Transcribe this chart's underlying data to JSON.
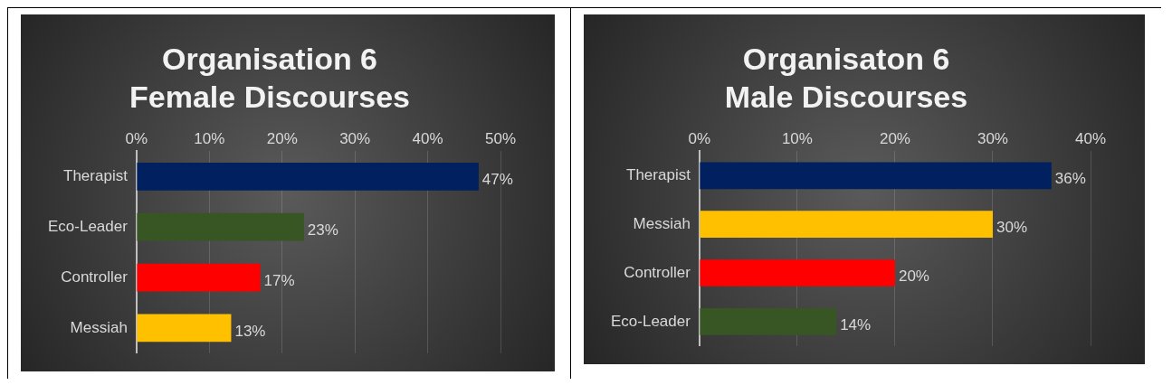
{
  "chart_data": [
    {
      "type": "bar",
      "orientation": "horizontal",
      "title": "Organisation 6\nFemale Discourses",
      "categories": [
        "Therapist",
        "Eco-Leader",
        "Controller",
        "Messiah"
      ],
      "values": [
        47,
        23,
        17,
        13
      ],
      "colors": [
        "#002060",
        "#375623",
        "#ff0000",
        "#ffc000"
      ],
      "value_labels": [
        "47%",
        "23%",
        "17%",
        "13%"
      ],
      "xlim": [
        0,
        50
      ],
      "xticks": [
        {
          "value": 0,
          "label": "0%"
        },
        {
          "value": 10,
          "label": "10%"
        },
        {
          "value": 20,
          "label": "20%"
        },
        {
          "value": 30,
          "label": "30%"
        },
        {
          "value": 40,
          "label": "40%"
        },
        {
          "value": 50,
          "label": "50%"
        }
      ],
      "grid": "x",
      "legend": false
    },
    {
      "type": "bar",
      "orientation": "horizontal",
      "title": "Organisaton 6\nMale Discourses",
      "categories": [
        "Therapist",
        "Messiah",
        "Controller",
        "Eco-Leader"
      ],
      "values": [
        36,
        30,
        20,
        14
      ],
      "colors": [
        "#002060",
        "#ffc000",
        "#ff0000",
        "#375623"
      ],
      "value_labels": [
        "36%",
        "30%",
        "20%",
        "14%"
      ],
      "xlim": [
        0,
        40
      ],
      "xticks": [
        {
          "value": 0,
          "label": "0%"
        },
        {
          "value": 10,
          "label": "10%"
        },
        {
          "value": 20,
          "label": "20%"
        },
        {
          "value": 30,
          "label": "30%"
        },
        {
          "value": 40,
          "label": "40%"
        }
      ],
      "grid": "x",
      "legend": false
    }
  ]
}
